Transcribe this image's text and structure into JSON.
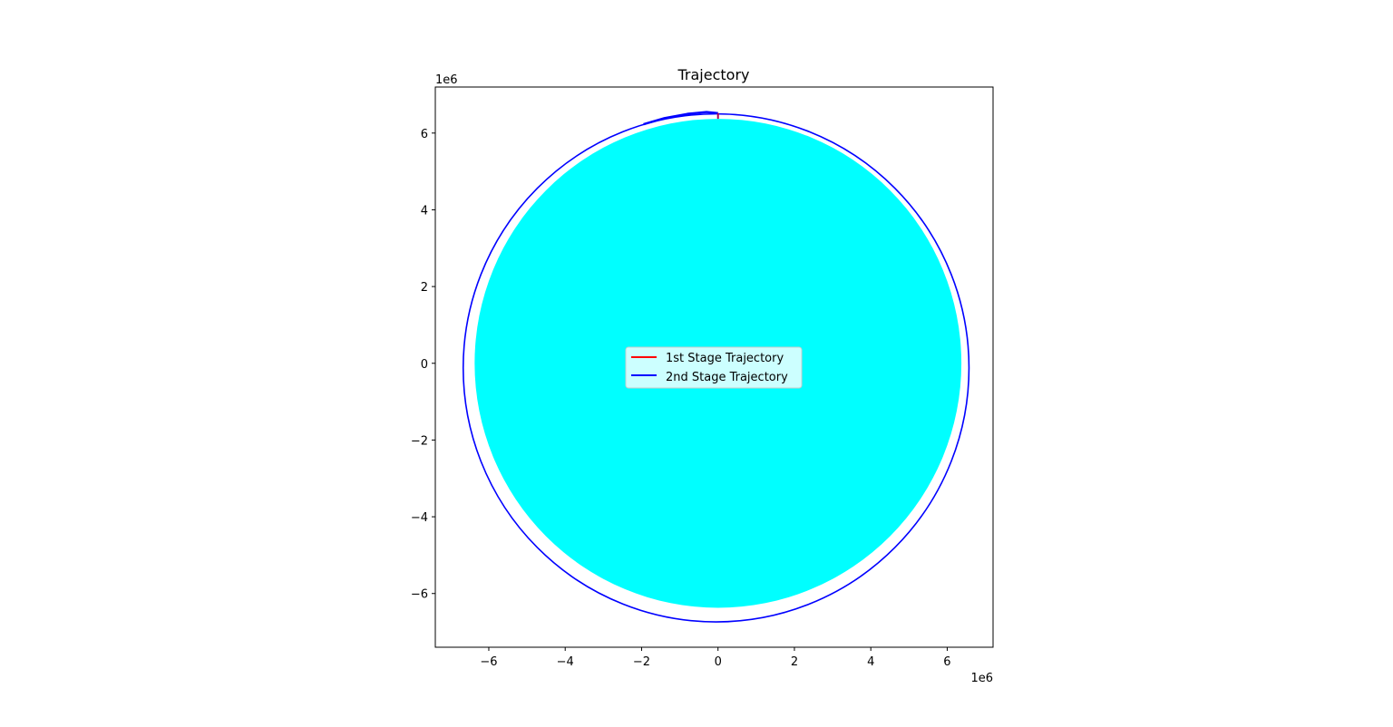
{
  "chart_data": {
    "type": "line",
    "title": "Trajectory",
    "xlabel": "",
    "ylabel": "",
    "x_offset_text": "1e6",
    "y_offset_text": "1e6",
    "xlim": [
      -7.4,
      7.2
    ],
    "ylim": [
      -7.4,
      7.2
    ],
    "xticks": [
      -6,
      -4,
      -2,
      0,
      2,
      4,
      6
    ],
    "yticks": [
      -6,
      -4,
      -2,
      0,
      2,
      4,
      6
    ],
    "xtick_labels": [
      "−6",
      "−4",
      "−2",
      "0",
      "2",
      "4",
      "6"
    ],
    "ytick_labels": [
      "−6",
      "−4",
      "−2",
      "0",
      "2",
      "4",
      "6"
    ],
    "grid": false,
    "legend_position": "center",
    "earth": {
      "center": [
        0,
        0
      ],
      "radius": 6.371,
      "color": "#00ffff"
    },
    "series": [
      {
        "name": "1st Stage Trajectory",
        "color": "#ff0000",
        "points": [
          [
            0,
            6.371
          ],
          [
            0,
            6.42
          ],
          [
            0,
            6.47
          ],
          [
            0.0,
            6.52
          ]
        ]
      },
      {
        "name": "2nd Stage Trajectory",
        "color": "#0000ff",
        "orbit": {
          "center": [
            -0.05,
            -0.12
          ],
          "semi_major_x": 6.62,
          "semi_minor_y": 6.62
        },
        "ascent_arc": [
          [
            0,
            6.52
          ],
          [
            -0.3,
            6.55
          ],
          [
            -0.8,
            6.5
          ],
          [
            -1.4,
            6.39
          ],
          [
            -1.95,
            6.23
          ]
        ]
      }
    ]
  }
}
